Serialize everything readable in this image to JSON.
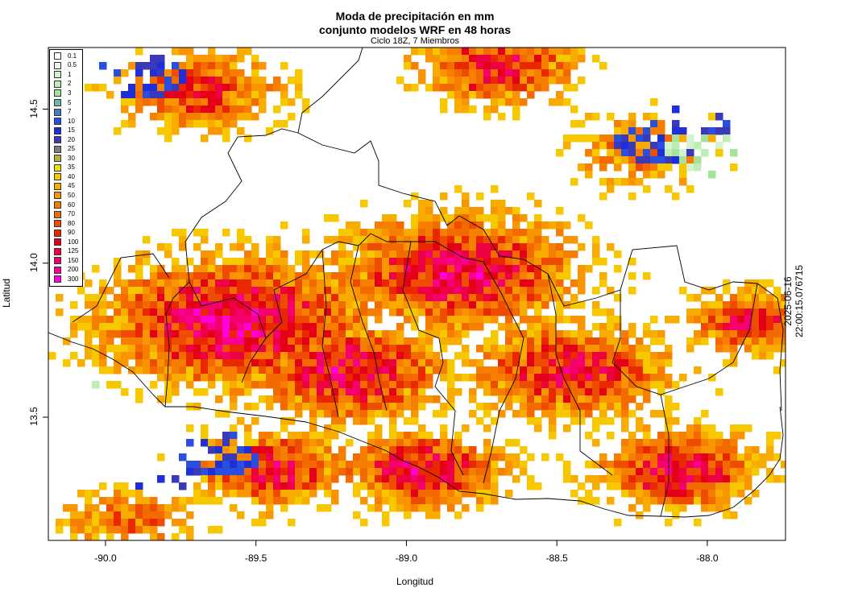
{
  "title_line1": "Moda de precipitación en mm",
  "title_line2": "conjunto modelos WRF en 48 horas",
  "subtitle": "Ciclo 18Z, 7 Miembros",
  "xlabel": "Longitud",
  "ylabel": "Latitud",
  "timestamp": "2025-06-16 22:00:15.076715",
  "x_ticks": [
    {
      "label": "-90.0",
      "value": -90.0
    },
    {
      "label": "-89.5",
      "value": -89.5
    },
    {
      "label": "-89.0",
      "value": -89.0
    },
    {
      "label": "-88.5",
      "value": -88.5
    },
    {
      "label": "-88.0",
      "value": -88.0
    }
  ],
  "y_ticks": [
    {
      "label": "14.5",
      "value": 14.5
    },
    {
      "label": "14.0",
      "value": 14.0
    },
    {
      "label": "13.5",
      "value": 13.5
    }
  ],
  "lon_range": [
    -90.19,
    -87.74
  ],
  "lat_range": [
    13.1,
    14.7
  ],
  "legend": {
    "placement": "top-left",
    "items": [
      {
        "label": "0.1",
        "color": "#ffffff"
      },
      {
        "label": "0.5",
        "color": "#eaf7ea"
      },
      {
        "label": "1",
        "color": "#d4f2d0"
      },
      {
        "label": "2",
        "color": "#bdeeb5"
      },
      {
        "label": "3",
        "color": "#a5e39a"
      },
      {
        "label": "5",
        "color": "#6fb5a5"
      },
      {
        "label": "7",
        "color": "#3f7fc9"
      },
      {
        "label": "10",
        "color": "#2a4fe0"
      },
      {
        "label": "15",
        "color": "#1f2fd8"
      },
      {
        "label": "20",
        "color": "#3a3ab8"
      },
      {
        "label": "25",
        "color": "#7d7d7d"
      },
      {
        "label": "30",
        "color": "#b8b040"
      },
      {
        "label": "35",
        "color": "#ece100"
      },
      {
        "label": "40",
        "color": "#f7c800"
      },
      {
        "label": "45",
        "color": "#f9ac00"
      },
      {
        "label": "50",
        "color": "#f99500"
      },
      {
        "label": "60",
        "color": "#f67e00"
      },
      {
        "label": "70",
        "color": "#f26a00"
      },
      {
        "label": "80",
        "color": "#ee4c00"
      },
      {
        "label": "90",
        "color": "#e92800"
      },
      {
        "label": "100",
        "color": "#e5001a"
      },
      {
        "label": "125",
        "color": "#ee0045"
      },
      {
        "label": "150",
        "color": "#f4006f"
      },
      {
        "label": "200",
        "color": "#fa0090"
      },
      {
        "label": "300",
        "color": "#ff00d6"
      }
    ]
  }
}
